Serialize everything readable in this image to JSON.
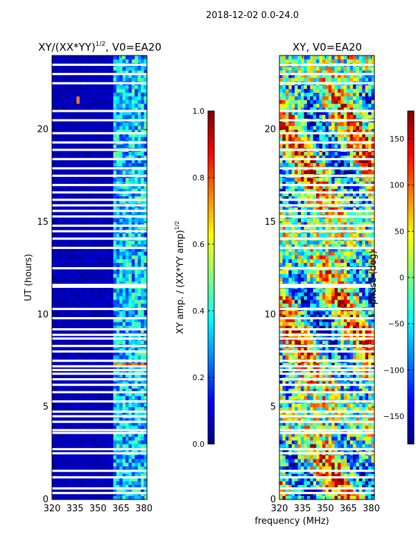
{
  "figure": {
    "suptitle": "2018-12-02 0.0-24.0",
    "xlabel": "frequency (MHz)"
  },
  "colors": {
    "jet": [
      "#00007f",
      "#0000ff",
      "#007fff",
      "#00ffff",
      "#7fff7f",
      "#ffff00",
      "#ff7f00",
      "#ff0000",
      "#7f0000"
    ],
    "background": "#ffffff"
  },
  "chart_data": [
    {
      "type": "heatmap",
      "title_main": "XY/(XX*YY)",
      "title_exp": "1/2",
      "title_tail": ", V0=EA20",
      "xlabel": "",
      "ylabel": "UT (hours)",
      "xlim": [
        320,
        382
      ],
      "ylim": [
        0,
        24
      ],
      "xticks": [
        320,
        335,
        350,
        365,
        380
      ],
      "yticks": [
        0,
        5,
        10,
        15,
        20
      ],
      "colorbar": {
        "label_main": "XY amp. / (XX*YY amp)",
        "label_exp": "1/2",
        "range": [
          0.0,
          1.0
        ],
        "ticks": [
          0.0,
          0.2,
          0.4,
          0.6,
          0.8,
          1.0
        ],
        "tick_labels": [
          "0.0",
          "0.2",
          "0.4",
          "0.6",
          "0.8",
          "1.0"
        ]
      },
      "gap_hours": [
        0.35,
        0.6,
        1.2,
        1.55,
        2.5,
        2.72,
        3.6,
        3.75,
        4.2,
        4.5,
        4.75,
        5.3,
        5.8,
        6.2,
        6.5,
        6.8,
        7.0,
        7.2,
        7.5,
        8.0,
        8.3,
        8.7,
        8.9,
        9.2,
        9.8,
        10.3,
        11.5,
        11.6,
        12.5,
        13.6,
        14.1,
        14.5,
        14.8,
        15.3,
        15.6,
        15.9,
        16.2,
        16.6,
        17.0,
        17.5,
        17.9,
        18.4,
        18.9,
        19.3,
        19.8,
        20.5,
        21.0,
        22.5,
        23.0,
        23.5
      ],
      "description": "normalized cross-correlation amplitude; mostly low (~0.0-0.1) with a brighter band (~0.2-0.5) between 360 and 382 MHz; hot spot near 7.3 h at 360-380 MHz and near 21.6 h at 337 MHz"
    },
    {
      "type": "heatmap",
      "title_main": "XY, V0=EA20",
      "xlabel": "frequency (MHz)",
      "ylabel": "",
      "xlim": [
        320,
        382
      ],
      "ylim": [
        0,
        24
      ],
      "xticks": [
        320,
        335,
        350,
        365,
        380
      ],
      "yticks": [
        0,
        5,
        10,
        15,
        20
      ],
      "colorbar": {
        "label_main": "phase (deg)",
        "range": [
          -180,
          180
        ],
        "ticks": [
          -150,
          -100,
          -50,
          0,
          50,
          100,
          150
        ],
        "tick_labels": [
          "−150",
          "−100",
          "−50",
          "0",
          "50",
          "100",
          "150"
        ]
      },
      "gap_hours": [
        0.35,
        0.6,
        1.2,
        1.55,
        2.5,
        2.72,
        3.6,
        3.75,
        4.2,
        4.5,
        4.75,
        5.3,
        5.8,
        6.2,
        6.5,
        6.8,
        7.0,
        7.2,
        7.5,
        8.0,
        8.3,
        8.7,
        8.9,
        9.2,
        9.8,
        10.3,
        11.5,
        11.6,
        12.5,
        13.6,
        14.1,
        14.5,
        14.8,
        15.3,
        15.6,
        15.9,
        16.2,
        16.6,
        17.0,
        17.5,
        17.9,
        18.4,
        18.9,
        19.3,
        19.8,
        20.5,
        21.0,
        22.5,
        23.0,
        23.5
      ],
      "description": "phase spanning -180 to 180 deg, noisy with broad frequency-dependent stripes"
    }
  ]
}
